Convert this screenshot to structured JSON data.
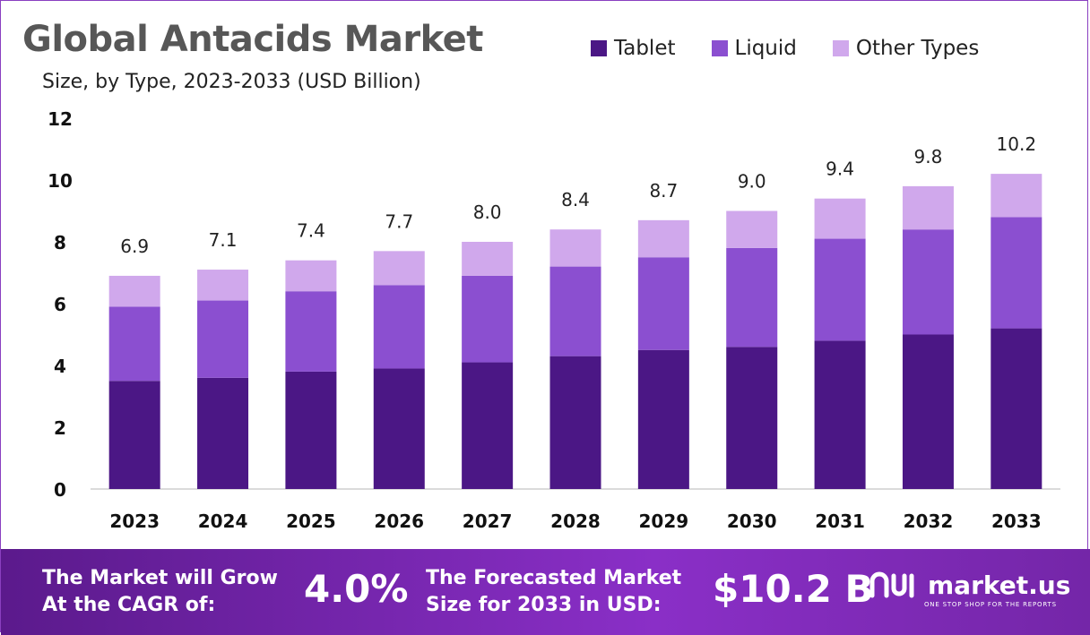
{
  "header": {
    "title": "Global Antacids Market",
    "subtitle": "Size, by Type, 2023-2033 (USD Billion)"
  },
  "colors": {
    "tablet": "#4b1785",
    "liquid": "#8b4fd0",
    "other": "#d0a8ec",
    "footer_start": "#5b1a8c",
    "footer_end": "#8a2fc7"
  },
  "chart_data": {
    "type": "bar",
    "stacked": true,
    "title": "Global Antacids Market",
    "subtitle": "Size, by Type, 2023-2033 (USD Billion)",
    "categories": [
      "2023",
      "2024",
      "2025",
      "2026",
      "2027",
      "2028",
      "2029",
      "2030",
      "2031",
      "2032",
      "2033"
    ],
    "series": [
      {
        "name": "Tablet",
        "values": [
          3.5,
          3.6,
          3.8,
          3.9,
          4.1,
          4.3,
          4.5,
          4.6,
          4.8,
          5.0,
          5.2
        ]
      },
      {
        "name": "Liquid",
        "values": [
          2.4,
          2.5,
          2.6,
          2.7,
          2.8,
          2.9,
          3.0,
          3.2,
          3.3,
          3.4,
          3.6
        ]
      },
      {
        "name": "Other Types",
        "values": [
          1.0,
          1.0,
          1.0,
          1.1,
          1.1,
          1.2,
          1.2,
          1.2,
          1.3,
          1.4,
          1.4
        ]
      }
    ],
    "totals": [
      "6.9",
      "7.1",
      "7.4",
      "7.7",
      "8.0",
      "8.4",
      "8.7",
      "9.0",
      "9.4",
      "9.8",
      "10.2"
    ],
    "y_ticks": [
      "0",
      "2",
      "4",
      "6",
      "8",
      "10",
      "12"
    ],
    "ylim": [
      0,
      12
    ],
    "legend_position": "top-right",
    "grid": false
  },
  "footer": {
    "cagr_label_line1": "The Market will Grow",
    "cagr_label_line2": "At the CAGR of:",
    "cagr_value": "4.0%",
    "forecast_label_line1": "The Forecasted Market",
    "forecast_label_line2": "Size for 2033 in USD:",
    "forecast_value": "$10.2 B",
    "brand_name": "market.us",
    "brand_tagline": "ONE STOP SHOP FOR THE REPORTS"
  }
}
